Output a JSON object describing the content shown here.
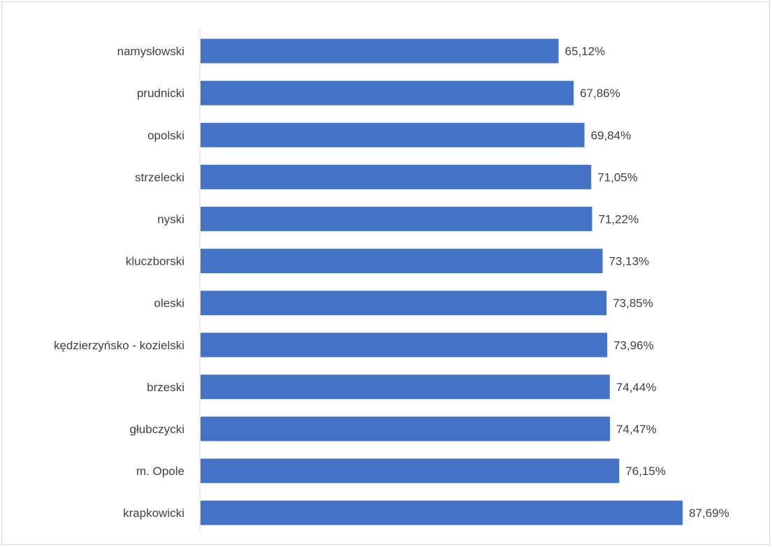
{
  "chart_data": {
    "type": "bar",
    "orientation": "horizontal",
    "categories": [
      "namysłowski",
      "prudnicki",
      "opolski",
      "strzelecki",
      "nyski",
      "kluczborski",
      "oleski",
      "kędzierzyńsko - kozielski",
      "brzeski",
      "głubczycki",
      "m. Opole",
      "krapkowicki"
    ],
    "values": [
      65.12,
      67.86,
      69.84,
      71.05,
      71.22,
      73.13,
      73.85,
      73.96,
      74.44,
      74.47,
      76.15,
      87.69
    ],
    "value_labels": [
      "65,12%",
      "67,86%",
      "69,84%",
      "71,05%",
      "71,22%",
      "73,13%",
      "73,85%",
      "73,96%",
      "74,44%",
      "74,47%",
      "76,15%",
      "87,69%"
    ],
    "unit": "%",
    "xlim": [
      0,
      100
    ],
    "grid": false,
    "legend": "none",
    "bar_color": "#4472c4",
    "axis_color": "#d9d9d9",
    "label_color": "#404040"
  }
}
